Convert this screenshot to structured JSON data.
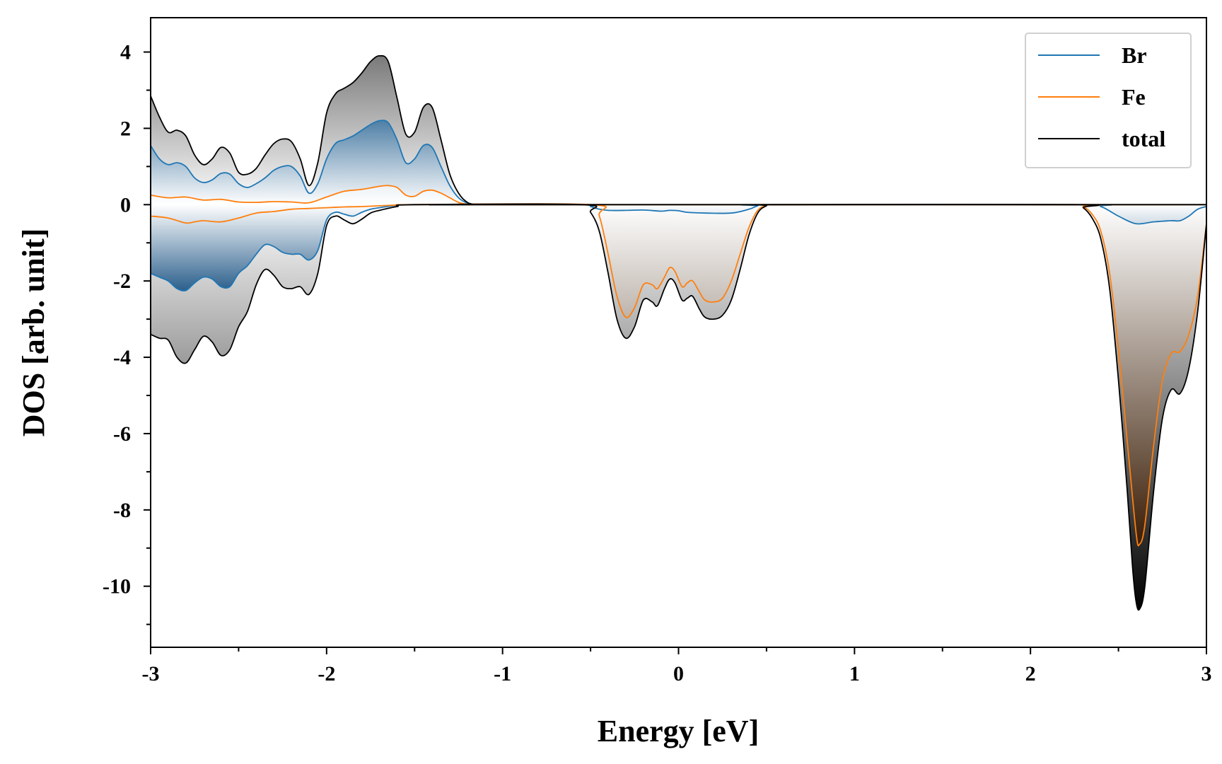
{
  "chart_data": {
    "type": "area",
    "xlabel": "Energy [eV]",
    "ylabel": "DOS [arb. unit]",
    "xlim": [
      -3,
      3
    ],
    "ylim": [
      -11.6,
      4.9
    ],
    "xticks": [
      -3,
      -2,
      -1,
      0,
      1,
      2,
      3
    ],
    "yticks": [
      4,
      2,
      0,
      -2,
      -4,
      -6,
      -8,
      -10
    ],
    "legend_position": "top-right",
    "grid": false,
    "series": [
      {
        "name": "Br",
        "color": "#1f77b4",
        "up": [
          [
            -3.0,
            1.55
          ],
          [
            -2.95,
            1.2
          ],
          [
            -2.9,
            1.05
          ],
          [
            -2.85,
            1.1
          ],
          [
            -2.8,
            1.0
          ],
          [
            -2.75,
            0.7
          ],
          [
            -2.7,
            0.58
          ],
          [
            -2.65,
            0.65
          ],
          [
            -2.6,
            0.82
          ],
          [
            -2.55,
            0.8
          ],
          [
            -2.5,
            0.55
          ],
          [
            -2.45,
            0.45
          ],
          [
            -2.4,
            0.55
          ],
          [
            -2.35,
            0.7
          ],
          [
            -2.3,
            0.9
          ],
          [
            -2.25,
            1.0
          ],
          [
            -2.2,
            1.0
          ],
          [
            -2.15,
            0.75
          ],
          [
            -2.1,
            0.3
          ],
          [
            -2.05,
            0.55
          ],
          [
            -2.0,
            1.2
          ],
          [
            -1.95,
            1.6
          ],
          [
            -1.9,
            1.7
          ],
          [
            -1.85,
            1.8
          ],
          [
            -1.8,
            1.95
          ],
          [
            -1.75,
            2.1
          ],
          [
            -1.7,
            2.2
          ],
          [
            -1.65,
            2.15
          ],
          [
            -1.6,
            1.7
          ],
          [
            -1.55,
            1.1
          ],
          [
            -1.5,
            1.2
          ],
          [
            -1.45,
            1.55
          ],
          [
            -1.4,
            1.5
          ],
          [
            -1.35,
            1.0
          ],
          [
            -1.3,
            0.5
          ],
          [
            -1.25,
            0.18
          ],
          [
            -1.2,
            0.04
          ],
          [
            -1.15,
            0.0
          ],
          [
            -1.1,
            0.0
          ],
          [
            3.0,
            0.0
          ]
        ],
        "down": [
          [
            -3.0,
            -1.8
          ],
          [
            -2.95,
            -1.9
          ],
          [
            -2.9,
            -2.0
          ],
          [
            -2.85,
            -2.2
          ],
          [
            -2.8,
            -2.25
          ],
          [
            -2.75,
            -2.05
          ],
          [
            -2.7,
            -1.9
          ],
          [
            -2.65,
            -1.95
          ],
          [
            -2.6,
            -2.15
          ],
          [
            -2.55,
            -2.15
          ],
          [
            -2.5,
            -1.8
          ],
          [
            -2.45,
            -1.6
          ],
          [
            -2.4,
            -1.3
          ],
          [
            -2.35,
            -1.05
          ],
          [
            -2.3,
            -1.1
          ],
          [
            -2.25,
            -1.25
          ],
          [
            -2.2,
            -1.3
          ],
          [
            -2.15,
            -1.3
          ],
          [
            -2.1,
            -1.45
          ],
          [
            -2.05,
            -1.2
          ],
          [
            -2.0,
            -0.4
          ],
          [
            -1.95,
            -0.2
          ],
          [
            -1.9,
            -0.25
          ],
          [
            -1.85,
            -0.3
          ],
          [
            -1.8,
            -0.2
          ],
          [
            -1.75,
            -0.12
          ],
          [
            -1.7,
            -0.08
          ],
          [
            -1.6,
            -0.02
          ],
          [
            -1.5,
            0.0
          ],
          [
            -0.55,
            0.0
          ],
          [
            -0.5,
            -0.05
          ],
          [
            -0.45,
            -0.12
          ],
          [
            -0.4,
            -0.15
          ],
          [
            -0.3,
            -0.15
          ],
          [
            -0.2,
            -0.14
          ],
          [
            -0.1,
            -0.17
          ],
          [
            -0.05,
            -0.15
          ],
          [
            0.0,
            -0.16
          ],
          [
            0.05,
            -0.2
          ],
          [
            0.15,
            -0.22
          ],
          [
            0.3,
            -0.22
          ],
          [
            0.4,
            -0.12
          ],
          [
            0.45,
            -0.03
          ],
          [
            0.5,
            0.0
          ],
          [
            2.3,
            0.0
          ],
          [
            2.4,
            -0.05
          ],
          [
            2.5,
            -0.3
          ],
          [
            2.6,
            -0.5
          ],
          [
            2.7,
            -0.45
          ],
          [
            2.8,
            -0.42
          ],
          [
            2.85,
            -0.42
          ],
          [
            2.9,
            -0.3
          ],
          [
            2.95,
            -0.12
          ],
          [
            3.0,
            -0.05
          ]
        ]
      },
      {
        "name": "Fe",
        "color": "#ff7f0e",
        "up": [
          [
            -3.0,
            0.25
          ],
          [
            -2.9,
            0.18
          ],
          [
            -2.8,
            0.2
          ],
          [
            -2.7,
            0.12
          ],
          [
            -2.6,
            0.14
          ],
          [
            -2.5,
            0.07
          ],
          [
            -2.4,
            0.06
          ],
          [
            -2.3,
            0.08
          ],
          [
            -2.2,
            0.07
          ],
          [
            -2.1,
            0.05
          ],
          [
            -2.0,
            0.2
          ],
          [
            -1.9,
            0.35
          ],
          [
            -1.8,
            0.4
          ],
          [
            -1.7,
            0.48
          ],
          [
            -1.65,
            0.5
          ],
          [
            -1.6,
            0.45
          ],
          [
            -1.55,
            0.25
          ],
          [
            -1.5,
            0.22
          ],
          [
            -1.45,
            0.35
          ],
          [
            -1.4,
            0.38
          ],
          [
            -1.35,
            0.3
          ],
          [
            -1.3,
            0.18
          ],
          [
            -1.25,
            0.06
          ],
          [
            -1.2,
            0.01
          ],
          [
            -1.15,
            0.0
          ],
          [
            3.0,
            0.0
          ]
        ],
        "down": [
          [
            -3.0,
            -0.3
          ],
          [
            -2.9,
            -0.35
          ],
          [
            -2.8,
            -0.48
          ],
          [
            -2.75,
            -0.45
          ],
          [
            -2.7,
            -0.42
          ],
          [
            -2.6,
            -0.45
          ],
          [
            -2.5,
            -0.35
          ],
          [
            -2.4,
            -0.22
          ],
          [
            -2.3,
            -0.18
          ],
          [
            -2.2,
            -0.12
          ],
          [
            -2.1,
            -0.1
          ],
          [
            -2.0,
            -0.08
          ],
          [
            -1.9,
            -0.06
          ],
          [
            -1.8,
            -0.05
          ],
          [
            -1.7,
            -0.03
          ],
          [
            -1.6,
            -0.01
          ],
          [
            -1.5,
            0.0
          ],
          [
            -0.5,
            0.0
          ],
          [
            -0.45,
            -0.3
          ],
          [
            -0.4,
            -1.3
          ],
          [
            -0.35,
            -2.4
          ],
          [
            -0.3,
            -2.95
          ],
          [
            -0.25,
            -2.7
          ],
          [
            -0.2,
            -2.1
          ],
          [
            -0.15,
            -2.1
          ],
          [
            -0.12,
            -2.2
          ],
          [
            -0.08,
            -1.9
          ],
          [
            -0.05,
            -1.65
          ],
          [
            -0.02,
            -1.75
          ],
          [
            0.02,
            -2.15
          ],
          [
            0.05,
            -2.05
          ],
          [
            0.08,
            -2.0
          ],
          [
            0.12,
            -2.3
          ],
          [
            0.15,
            -2.5
          ],
          [
            0.2,
            -2.55
          ],
          [
            0.25,
            -2.45
          ],
          [
            0.3,
            -2.0
          ],
          [
            0.35,
            -1.3
          ],
          [
            0.4,
            -0.6
          ],
          [
            0.45,
            -0.15
          ],
          [
            0.5,
            -0.02
          ],
          [
            0.55,
            0.0
          ],
          [
            2.25,
            0.0
          ],
          [
            2.3,
            -0.05
          ],
          [
            2.35,
            -0.25
          ],
          [
            2.4,
            -0.7
          ],
          [
            2.45,
            -1.8
          ],
          [
            2.5,
            -3.8
          ],
          [
            2.55,
            -6.2
          ],
          [
            2.6,
            -8.6
          ],
          [
            2.62,
            -8.9
          ],
          [
            2.65,
            -8.4
          ],
          [
            2.7,
            -6.3
          ],
          [
            2.75,
            -4.6
          ],
          [
            2.8,
            -3.9
          ],
          [
            2.85,
            -3.85
          ],
          [
            2.9,
            -3.4
          ],
          [
            2.95,
            -2.4
          ],
          [
            3.0,
            -0.5
          ]
        ]
      },
      {
        "name": "total",
        "color": "#000000",
        "up": [
          [
            -3.0,
            2.85
          ],
          [
            -2.95,
            2.3
          ],
          [
            -2.9,
            1.9
          ],
          [
            -2.85,
            1.95
          ],
          [
            -2.8,
            1.8
          ],
          [
            -2.75,
            1.3
          ],
          [
            -2.7,
            1.05
          ],
          [
            -2.65,
            1.2
          ],
          [
            -2.6,
            1.5
          ],
          [
            -2.55,
            1.35
          ],
          [
            -2.5,
            0.85
          ],
          [
            -2.45,
            0.8
          ],
          [
            -2.4,
            0.95
          ],
          [
            -2.35,
            1.3
          ],
          [
            -2.3,
            1.6
          ],
          [
            -2.25,
            1.72
          ],
          [
            -2.2,
            1.65
          ],
          [
            -2.15,
            1.2
          ],
          [
            -2.1,
            0.5
          ],
          [
            -2.05,
            1.1
          ],
          [
            -2.0,
            2.4
          ],
          [
            -1.95,
            2.9
          ],
          [
            -1.9,
            3.05
          ],
          [
            -1.85,
            3.2
          ],
          [
            -1.8,
            3.45
          ],
          [
            -1.75,
            3.75
          ],
          [
            -1.7,
            3.9
          ],
          [
            -1.65,
            3.75
          ],
          [
            -1.6,
            2.8
          ],
          [
            -1.55,
            1.85
          ],
          [
            -1.5,
            1.9
          ],
          [
            -1.45,
            2.55
          ],
          [
            -1.4,
            2.55
          ],
          [
            -1.35,
            1.7
          ],
          [
            -1.3,
            0.8
          ],
          [
            -1.25,
            0.3
          ],
          [
            -1.2,
            0.06
          ],
          [
            -1.15,
            0.0
          ],
          [
            -1.1,
            0.0
          ],
          [
            3.0,
            0.0
          ]
        ],
        "down": [
          [
            -3.0,
            -3.4
          ],
          [
            -2.95,
            -3.5
          ],
          [
            -2.9,
            -3.55
          ],
          [
            -2.85,
            -4.0
          ],
          [
            -2.8,
            -4.15
          ],
          [
            -2.75,
            -3.8
          ],
          [
            -2.7,
            -3.45
          ],
          [
            -2.65,
            -3.6
          ],
          [
            -2.6,
            -3.95
          ],
          [
            -2.55,
            -3.8
          ],
          [
            -2.5,
            -3.2
          ],
          [
            -2.45,
            -2.8
          ],
          [
            -2.4,
            -2.1
          ],
          [
            -2.35,
            -1.7
          ],
          [
            -2.3,
            -1.85
          ],
          [
            -2.25,
            -2.15
          ],
          [
            -2.2,
            -2.2
          ],
          [
            -2.15,
            -2.15
          ],
          [
            -2.1,
            -2.35
          ],
          [
            -2.05,
            -1.8
          ],
          [
            -2.0,
            -0.55
          ],
          [
            -1.95,
            -0.3
          ],
          [
            -1.9,
            -0.4
          ],
          [
            -1.85,
            -0.5
          ],
          [
            -1.8,
            -0.38
          ],
          [
            -1.75,
            -0.22
          ],
          [
            -1.7,
            -0.15
          ],
          [
            -1.6,
            -0.05
          ],
          [
            -1.5,
            0.0
          ],
          [
            -0.55,
            0.0
          ],
          [
            -0.5,
            -0.2
          ],
          [
            -0.45,
            -0.7
          ],
          [
            -0.4,
            -1.8
          ],
          [
            -0.35,
            -3.0
          ],
          [
            -0.3,
            -3.5
          ],
          [
            -0.25,
            -3.2
          ],
          [
            -0.2,
            -2.5
          ],
          [
            -0.15,
            -2.55
          ],
          [
            -0.12,
            -2.65
          ],
          [
            -0.08,
            -2.2
          ],
          [
            -0.05,
            -1.95
          ],
          [
            -0.02,
            -2.05
          ],
          [
            0.02,
            -2.5
          ],
          [
            0.05,
            -2.45
          ],
          [
            0.08,
            -2.4
          ],
          [
            0.12,
            -2.75
          ],
          [
            0.15,
            -2.95
          ],
          [
            0.2,
            -3.0
          ],
          [
            0.25,
            -2.9
          ],
          [
            0.3,
            -2.5
          ],
          [
            0.35,
            -1.7
          ],
          [
            0.4,
            -0.8
          ],
          [
            0.45,
            -0.22
          ],
          [
            0.5,
            -0.03
          ],
          [
            0.55,
            0.0
          ],
          [
            2.25,
            0.0
          ],
          [
            2.3,
            -0.08
          ],
          [
            2.35,
            -0.35
          ],
          [
            2.4,
            -0.9
          ],
          [
            2.45,
            -2.2
          ],
          [
            2.5,
            -4.6
          ],
          [
            2.55,
            -7.5
          ],
          [
            2.58,
            -9.5
          ],
          [
            2.6,
            -10.4
          ],
          [
            2.62,
            -10.6
          ],
          [
            2.65,
            -10.0
          ],
          [
            2.7,
            -7.5
          ],
          [
            2.75,
            -5.6
          ],
          [
            2.8,
            -4.85
          ],
          [
            2.85,
            -4.95
          ],
          [
            2.9,
            -4.3
          ],
          [
            2.95,
            -2.8
          ],
          [
            3.0,
            -0.5
          ]
        ]
      }
    ]
  }
}
